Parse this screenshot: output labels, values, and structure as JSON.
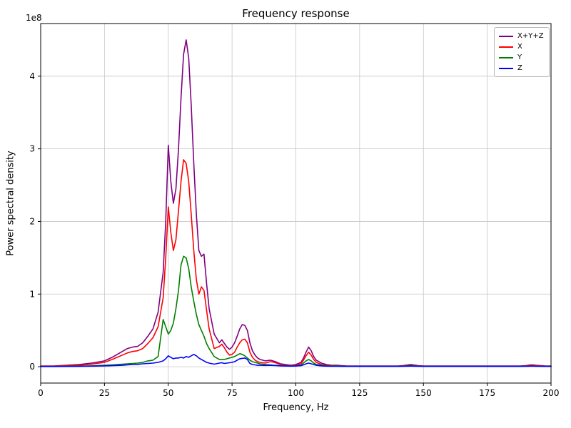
{
  "chart_data": {
    "type": "line",
    "title": "Frequency response",
    "xlabel": "Frequency, Hz",
    "ylabel": "Power spectral density",
    "y_offset_label": "1e8",
    "y_values_unit": "1e8",
    "grid": true,
    "legend_position": "upper right",
    "xlim": [
      0,
      200
    ],
    "ylim": [
      -0.225,
      4.725
    ],
    "xticks": [
      0,
      25,
      50,
      75,
      100,
      125,
      150,
      175,
      200
    ],
    "yticks": [
      0,
      1,
      2,
      3,
      4
    ],
    "x": [
      0,
      5,
      10,
      15,
      20,
      25,
      28,
      30,
      32,
      34,
      36,
      38,
      40,
      42,
      44,
      46,
      48,
      49,
      50,
      51,
      52,
      53,
      54,
      55,
      56,
      57,
      58,
      59,
      60,
      61,
      62,
      63,
      64,
      65,
      66,
      68,
      70,
      71,
      72,
      73,
      74,
      75,
      76,
      77,
      78,
      79,
      80,
      81,
      82,
      83,
      84,
      85,
      86,
      88,
      90,
      91,
      92,
      94,
      96,
      98,
      100,
      102,
      103,
      104,
      105,
      106,
      107,
      108,
      110,
      112,
      114,
      116,
      118,
      120,
      125,
      130,
      135,
      140,
      142,
      144,
      145,
      146,
      148,
      150,
      155,
      160,
      165,
      170,
      175,
      180,
      185,
      188,
      190,
      191,
      192,
      193,
      194,
      196,
      198,
      200
    ],
    "series": [
      {
        "name": "X+Y+Z",
        "color": "#800080",
        "values": [
          0.01,
          0.01,
          0.02,
          0.03,
          0.05,
          0.08,
          0.13,
          0.17,
          0.21,
          0.25,
          0.27,
          0.28,
          0.33,
          0.42,
          0.52,
          0.75,
          1.3,
          2.0,
          3.05,
          2.55,
          2.25,
          2.45,
          3.0,
          3.7,
          4.3,
          4.5,
          4.25,
          3.6,
          2.8,
          2.1,
          1.6,
          1.52,
          1.55,
          1.15,
          0.8,
          0.45,
          0.33,
          0.37,
          0.32,
          0.27,
          0.24,
          0.27,
          0.33,
          0.42,
          0.52,
          0.58,
          0.57,
          0.5,
          0.33,
          0.22,
          0.16,
          0.12,
          0.1,
          0.08,
          0.09,
          0.08,
          0.07,
          0.04,
          0.03,
          0.02,
          0.03,
          0.06,
          0.12,
          0.2,
          0.27,
          0.22,
          0.14,
          0.09,
          0.05,
          0.03,
          0.02,
          0.02,
          0.015,
          0.01,
          0.01,
          0.01,
          0.01,
          0.01,
          0.015,
          0.025,
          0.03,
          0.025,
          0.015,
          0.01,
          0.01,
          0.01,
          0.01,
          0.01,
          0.01,
          0.01,
          0.01,
          0.01,
          0.015,
          0.02,
          0.025,
          0.025,
          0.02,
          0.015,
          0.01,
          0.01
        ]
      },
      {
        "name": "X",
        "color": "#ff0000",
        "values": [
          0.008,
          0.008,
          0.015,
          0.02,
          0.035,
          0.06,
          0.1,
          0.13,
          0.16,
          0.19,
          0.21,
          0.22,
          0.25,
          0.32,
          0.4,
          0.55,
          0.95,
          1.5,
          2.2,
          1.85,
          1.6,
          1.75,
          2.15,
          2.55,
          2.85,
          2.8,
          2.55,
          2.1,
          1.6,
          1.2,
          1.0,
          1.1,
          1.05,
          0.78,
          0.52,
          0.25,
          0.28,
          0.31,
          0.26,
          0.2,
          0.16,
          0.17,
          0.2,
          0.27,
          0.33,
          0.37,
          0.38,
          0.33,
          0.2,
          0.13,
          0.09,
          0.07,
          0.06,
          0.05,
          0.07,
          0.065,
          0.055,
          0.03,
          0.02,
          0.015,
          0.02,
          0.04,
          0.09,
          0.15,
          0.2,
          0.16,
          0.1,
          0.06,
          0.03,
          0.02,
          0.015,
          0.012,
          0.01,
          0.008,
          0.008,
          0.008,
          0.008,
          0.008,
          0.01,
          0.015,
          0.018,
          0.015,
          0.01,
          0.008,
          0.008,
          0.008,
          0.008,
          0.008,
          0.008,
          0.008,
          0.008,
          0.008,
          0.012,
          0.016,
          0.02,
          0.02,
          0.016,
          0.012,
          0.008,
          0.008
        ]
      },
      {
        "name": "Y",
        "color": "#008000",
        "values": [
          0.004,
          0.004,
          0.006,
          0.008,
          0.012,
          0.02,
          0.025,
          0.03,
          0.035,
          0.04,
          0.045,
          0.05,
          0.06,
          0.08,
          0.09,
          0.14,
          0.65,
          0.55,
          0.45,
          0.5,
          0.6,
          0.8,
          1.05,
          1.4,
          1.52,
          1.5,
          1.35,
          1.1,
          0.9,
          0.72,
          0.58,
          0.5,
          0.42,
          0.32,
          0.25,
          0.14,
          0.1,
          0.1,
          0.1,
          0.11,
          0.12,
          0.13,
          0.14,
          0.16,
          0.18,
          0.17,
          0.15,
          0.12,
          0.09,
          0.07,
          0.06,
          0.05,
          0.04,
          0.03,
          0.025,
          0.022,
          0.02,
          0.015,
          0.012,
          0.01,
          0.012,
          0.02,
          0.05,
          0.08,
          0.1,
          0.08,
          0.05,
          0.03,
          0.02,
          0.012,
          0.01,
          0.01,
          0.008,
          0.006,
          0.006,
          0.006,
          0.006,
          0.006,
          0.008,
          0.012,
          0.015,
          0.012,
          0.008,
          0.006,
          0.006,
          0.006,
          0.006,
          0.006,
          0.006,
          0.006,
          0.006,
          0.006,
          0.008,
          0.008,
          0.01,
          0.01,
          0.008,
          0.006,
          0.005,
          0.005
        ]
      },
      {
        "name": "Z",
        "color": "#0000ff",
        "values": [
          0.003,
          0.003,
          0.004,
          0.005,
          0.008,
          0.012,
          0.015,
          0.018,
          0.02,
          0.025,
          0.03,
          0.032,
          0.04,
          0.045,
          0.05,
          0.06,
          0.08,
          0.11,
          0.15,
          0.13,
          0.11,
          0.12,
          0.12,
          0.13,
          0.12,
          0.14,
          0.13,
          0.15,
          0.17,
          0.15,
          0.12,
          0.1,
          0.08,
          0.06,
          0.05,
          0.035,
          0.05,
          0.055,
          0.045,
          0.05,
          0.055,
          0.06,
          0.07,
          0.09,
          0.11,
          0.115,
          0.12,
          0.1,
          0.045,
          0.03,
          0.025,
          0.02,
          0.02,
          0.018,
          0.02,
          0.018,
          0.016,
          0.012,
          0.01,
          0.008,
          0.01,
          0.015,
          0.025,
          0.04,
          0.05,
          0.04,
          0.03,
          0.02,
          0.012,
          0.008,
          0.006,
          0.006,
          0.005,
          0.005,
          0.005,
          0.005,
          0.005,
          0.005,
          0.006,
          0.008,
          0.01,
          0.008,
          0.006,
          0.005,
          0.005,
          0.005,
          0.005,
          0.005,
          0.005,
          0.005,
          0.005,
          0.005,
          0.006,
          0.007,
          0.008,
          0.008,
          0.007,
          0.006,
          0.005,
          0.005
        ]
      }
    ]
  }
}
